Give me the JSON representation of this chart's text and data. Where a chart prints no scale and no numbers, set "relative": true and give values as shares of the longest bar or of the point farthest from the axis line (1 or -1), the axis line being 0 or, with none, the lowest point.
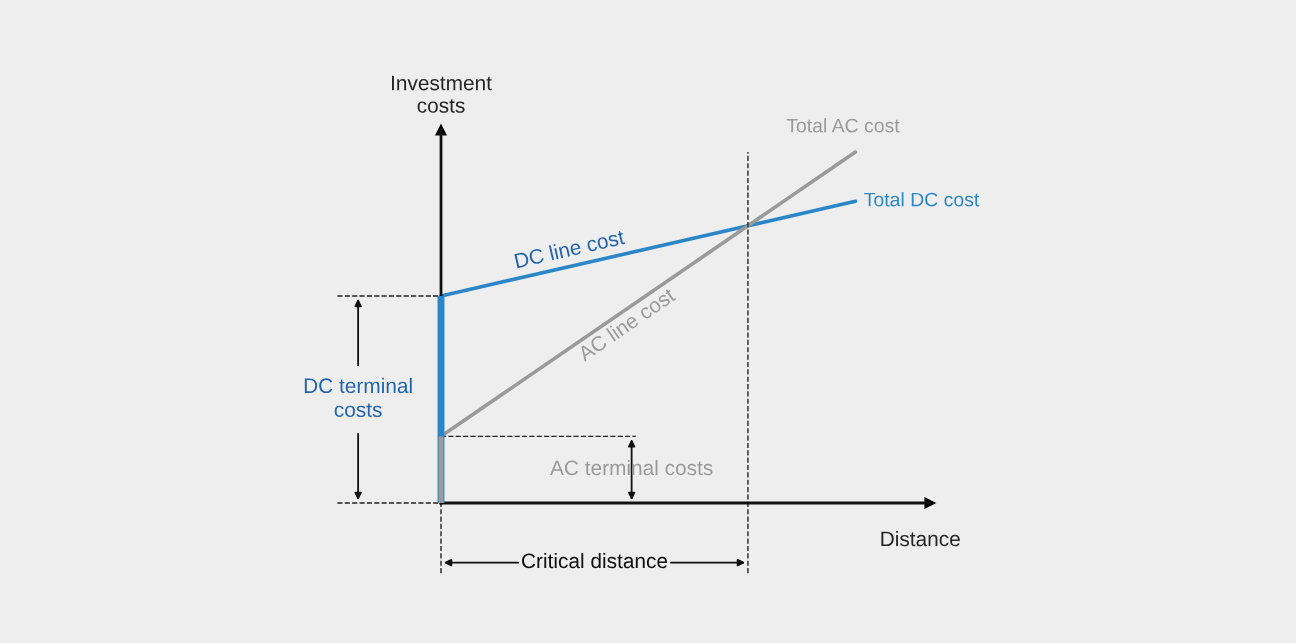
{
  "chart_data": {
    "type": "line",
    "relative": true,
    "xlabel": "Distance",
    "ylabel": "Investment\ncosts",
    "categories": [
      null,
      null
    ],
    "series": [
      {
        "name": "Total DC cost",
        "color": "#2b86c8",
        "values": [
          0.59,
          0.86
        ]
      },
      {
        "name": "Total AC cost",
        "color": "#9a9a9a",
        "values": [
          0.19,
          1
        ]
      }
    ],
    "annotations": [
      "DC line cost",
      "AC line cost",
      "DC terminal\ncosts",
      "AC terminal costs",
      "Critical distance"
    ],
    "line_style": "solid",
    "marker": "none"
  }
}
